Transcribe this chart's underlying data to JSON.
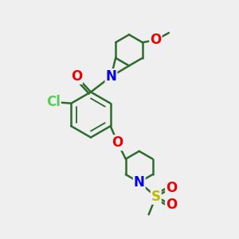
{
  "bg_color": "#efefef",
  "bond_color": "#2e6b2e",
  "bond_width": 1.8,
  "atom_colors": {
    "C": "#2e6b2e",
    "N": "#0000ee",
    "O": "#ee0000",
    "S": "#bbbb00",
    "Cl": "#55cc55"
  },
  "font_size_atom": 11,
  "ring_r": 0.95,
  "pip_r": 0.65,
  "scale": 1.0
}
